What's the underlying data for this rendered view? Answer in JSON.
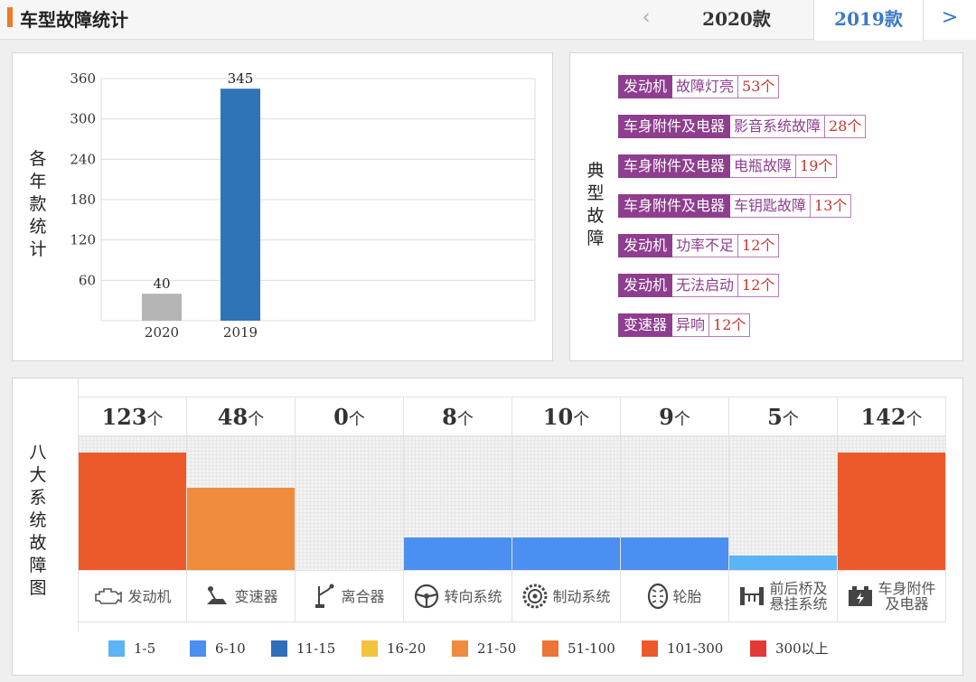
{
  "header": {
    "title": "车型故障统计",
    "prev_icon": "‹",
    "next_icon": ">",
    "tabs": [
      {
        "label": "2020款",
        "active": false
      },
      {
        "label": "2019款",
        "active": true
      }
    ]
  },
  "years_panel": {
    "vertical_label": [
      "各",
      "年",
      "款",
      "统",
      "计"
    ]
  },
  "faults_panel": {
    "vertical_label": [
      "典",
      "型",
      "故",
      "障"
    ],
    "items": [
      {
        "category": "发动机",
        "description": "故障灯亮",
        "count": "53个"
      },
      {
        "category": "车身附件及电器",
        "description": "影音系统故障",
        "count": "28个"
      },
      {
        "category": "车身附件及电器",
        "description": "电瓶故障",
        "count": "19个"
      },
      {
        "category": "车身附件及电器",
        "description": "车钥匙故障",
        "count": "13个"
      },
      {
        "category": "发动机",
        "description": "功率不足",
        "count": "12个"
      },
      {
        "category": "发动机",
        "description": "无法启动",
        "count": "12个"
      },
      {
        "category": "变速器",
        "description": "异响",
        "count": "12个"
      }
    ]
  },
  "systems_panel": {
    "vertical_label": [
      "八",
      "大",
      "系",
      "统",
      "故",
      "障",
      "图"
    ],
    "unit": "个",
    "systems": [
      {
        "name": "发动机",
        "count": "123",
        "value": 123,
        "color": "#ec5a2c",
        "icon": "engine-icon"
      },
      {
        "name": "变速器",
        "count": "48",
        "value": 48,
        "color": "#ef8b3c",
        "icon": "gear-shift-icon"
      },
      {
        "name": "离合器",
        "count": "0",
        "value": 0,
        "color": "#f3f3f3",
        "icon": "clutch-icon"
      },
      {
        "name": "转向系统",
        "count": "8",
        "value": 8,
        "color": "#4b8ff0",
        "icon": "steering-wheel-icon"
      },
      {
        "name": "制动系统",
        "count": "10",
        "value": 10,
        "color": "#4b8ff0",
        "icon": "brake-disc-icon"
      },
      {
        "name": "轮胎",
        "count": "9",
        "value": 9,
        "color": "#4b8ff0",
        "icon": "tire-icon"
      },
      {
        "name": "前后桥及悬挂系统",
        "count": "5",
        "value": 5,
        "color": "#5ab4f5",
        "icon": "suspension-icon"
      },
      {
        "name": "车身附件及电器",
        "count": "142",
        "value": 142,
        "color": "#ec5a2c",
        "icon": "battery-icon"
      }
    ],
    "legend": [
      {
        "label": "1-5",
        "color": "#5ab4f5"
      },
      {
        "label": "6-10",
        "color": "#4b8ff0"
      },
      {
        "label": "11-15",
        "color": "#2f6fb8"
      },
      {
        "label": "16-20",
        "color": "#f4c33d"
      },
      {
        "label": "21-50",
        "color": "#ef8b3c"
      },
      {
        "label": "51-100",
        "color": "#ec7436"
      },
      {
        "label": "101-300",
        "color": "#ec5a2c"
      },
      {
        "label": "300以上",
        "color": "#e43a36"
      }
    ]
  },
  "chart_data": [
    {
      "type": "bar",
      "title": "各年款统计",
      "categories": [
        "2020",
        "2019"
      ],
      "values": [
        40,
        345
      ],
      "colors": [
        "#b4b4b4",
        "#3074b8"
      ],
      "yticks": [
        60,
        120,
        180,
        240,
        300,
        360
      ],
      "ylim": [
        0,
        360
      ],
      "xlabel": "",
      "ylabel": "",
      "grid": true
    },
    {
      "type": "bar",
      "title": "八大系统故障图",
      "categories": [
        "发动机",
        "变速器",
        "离合器",
        "转向系统",
        "制动系统",
        "轮胎",
        "前后桥及悬挂系统",
        "车身附件及电器"
      ],
      "values": [
        123,
        48,
        0,
        8,
        10,
        9,
        5,
        142
      ],
      "bar_level": [
        100,
        70,
        0,
        28,
        28,
        28,
        12,
        100
      ],
      "legend_position": "bottom"
    }
  ]
}
